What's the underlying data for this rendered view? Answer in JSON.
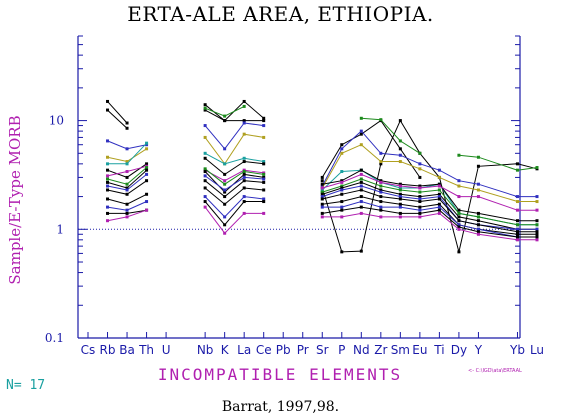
{
  "title": "ERTA-ALE AREA, ETHIOPIA.",
  "credit": "Barrat, 1997,98.",
  "n_label": "N= 17",
  "footnote": "<- C:\\IGD\\ata\\ERTAAL",
  "colors": {
    "axis": "#1a1aa8",
    "label": "#b020b0",
    "nlabel": "#1aa0a0"
  },
  "chart_data": {
    "type": "line",
    "title": "ERTA-ALE AREA, ETHIOPIA.",
    "xlabel": "INCOMPATIBLE ELEMENTS",
    "ylabel": "Sample/E-Type MORB",
    "yscale": "log",
    "ylim": [
      0.1,
      60
    ],
    "yticks": [
      {
        "value": 0.1,
        "label": "0.1"
      },
      {
        "value": 1,
        "label": "1"
      },
      {
        "value": 10,
        "label": "10"
      }
    ],
    "reference_line": 1,
    "grid": false,
    "categories": [
      "Cs",
      "Rb",
      "Ba",
      "Th",
      "U",
      "Nb",
      "K",
      "La",
      "Ce",
      "Pb",
      "Pr",
      "Sr",
      "P",
      "Nd",
      "Zr",
      "Sm",
      "Eu",
      "Ti",
      "Dy",
      "Y",
      "Yb",
      "Lu"
    ],
    "x_index": [
      0,
      1,
      2,
      3,
      4,
      6,
      7,
      8,
      9,
      10,
      11,
      12,
      13,
      14,
      15,
      16,
      17,
      18,
      19,
      20,
      22,
      23
    ],
    "series": [
      {
        "color": "#000000",
        "values": [
          null,
          15,
          9.5,
          null,
          null,
          14,
          10,
          15,
          10.5,
          null,
          null,
          3,
          6,
          7.5,
          10,
          5.5,
          3,
          null,
          null,
          null,
          null,
          null
        ]
      },
      {
        "color": "#000000",
        "values": [
          null,
          12.5,
          8.5,
          null,
          null,
          12.5,
          10,
          10,
          10,
          null,
          null,
          2.8,
          null,
          null,
          null,
          null,
          null,
          null,
          null,
          null,
          null,
          null
        ]
      },
      {
        "color": "#000000",
        "values": [
          null,
          null,
          null,
          null,
          null,
          null,
          null,
          null,
          null,
          null,
          null,
          2.4,
          0.62,
          0.63,
          4,
          10,
          5,
          3,
          0.62,
          3.8,
          4,
          3.6
        ]
      },
      {
        "color": "#1d8a1d",
        "values": [
          null,
          null,
          null,
          null,
          null,
          13,
          11,
          13.5,
          null,
          null,
          null,
          2.2,
          null,
          10.5,
          10.2,
          6.5,
          5,
          null,
          4.8,
          4.6,
          3.5,
          3.7
        ]
      },
      {
        "color": "#3030c0",
        "values": [
          null,
          6.5,
          5.5,
          6,
          null,
          9,
          5.5,
          9.5,
          9,
          null,
          null,
          2.5,
          5.5,
          8,
          5,
          4.8,
          4,
          3.5,
          2.8,
          2.6,
          2,
          2
        ]
      },
      {
        "color": "#b0a020",
        "values": [
          null,
          4.6,
          4.2,
          5.5,
          null,
          7,
          4,
          7.5,
          7,
          null,
          null,
          2.4,
          5,
          6,
          4.2,
          4.2,
          3.6,
          3,
          2.5,
          2.3,
          1.8,
          1.8
        ]
      },
      {
        "color": "#1aa0a0",
        "values": [
          null,
          4,
          4,
          6.2,
          null,
          5,
          4,
          4.5,
          4.2,
          null,
          null,
          2.3,
          3.4,
          3.5,
          2.7,
          2.4,
          2.4,
          2.6,
          1.4,
          1.3,
          1.1,
          1.1
        ]
      },
      {
        "color": "#000000",
        "values": [
          null,
          3.5,
          3,
          4,
          null,
          4.5,
          3.2,
          4.2,
          4,
          null,
          null,
          2.6,
          2.8,
          3.5,
          2.8,
          2.6,
          2.5,
          2.6,
          1.5,
          1.4,
          1.2,
          1.2
        ]
      },
      {
        "color": "#b020b0",
        "values": [
          null,
          3.1,
          3.4,
          3.8,
          null,
          3.5,
          2.8,
          3.5,
          3.3,
          null,
          null,
          2.4,
          2.7,
          3.2,
          2.7,
          2.5,
          2.4,
          2.5,
          2,
          2,
          1.5,
          1.5
        ]
      },
      {
        "color": "#1d8a1d",
        "values": [
          null,
          2.9,
          2.6,
          3.7,
          null,
          3.6,
          2.6,
          3.4,
          3.2,
          null,
          null,
          2.2,
          2.5,
          2.9,
          2.5,
          2.3,
          2.2,
          2.3,
          1.4,
          1.3,
          1.1,
          1.1
        ]
      },
      {
        "color": "#000000",
        "values": [
          null,
          2.7,
          2.4,
          3.5,
          null,
          3.4,
          2.2,
          3.2,
          3,
          null,
          null,
          2.1,
          2.4,
          2.7,
          2.3,
          2.1,
          2,
          2.1,
          1.3,
          1.2,
          1,
          1
        ]
      },
      {
        "color": "#3030c0",
        "values": [
          null,
          2.5,
          2.3,
          3.2,
          null,
          3.1,
          2.3,
          3,
          2.9,
          null,
          null,
          2,
          2.3,
          2.5,
          2.2,
          2,
          1.9,
          2,
          1.2,
          1.1,
          1,
          1
        ]
      },
      {
        "color": "#000000",
        "values": [
          null,
          2.3,
          2.1,
          2.8,
          null,
          2.8,
          2,
          2.8,
          2.7,
          null,
          null,
          1.9,
          2.1,
          2.3,
          2,
          1.9,
          1.8,
          1.9,
          1.2,
          1.1,
          0.95,
          0.95
        ]
      },
      {
        "color": "#000000",
        "values": [
          null,
          1.9,
          1.7,
          2.1,
          null,
          2.4,
          1.7,
          2.4,
          2.3,
          null,
          null,
          1.7,
          1.8,
          2,
          1.8,
          1.7,
          1.6,
          1.7,
          1.1,
          1,
          0.9,
          0.9
        ]
      },
      {
        "color": "#3030c0",
        "values": [
          null,
          1.6,
          1.5,
          1.8,
          null,
          2,
          1.3,
          2,
          1.9,
          null,
          null,
          1.6,
          1.6,
          1.8,
          1.6,
          1.6,
          1.5,
          1.6,
          1.1,
          1,
          0.85,
          0.85
        ]
      },
      {
        "color": "#000000",
        "values": [
          null,
          1.4,
          1.4,
          1.5,
          null,
          1.8,
          1.1,
          1.8,
          1.8,
          null,
          null,
          1.4,
          1.5,
          1.6,
          1.5,
          1.4,
          1.4,
          1.5,
          1.05,
          0.95,
          0.85,
          0.85
        ]
      },
      {
        "color": "#b020b0",
        "values": [
          null,
          1.2,
          1.3,
          1.5,
          null,
          1.6,
          0.92,
          1.4,
          1.4,
          null,
          null,
          1.3,
          1.3,
          1.4,
          1.3,
          1.3,
          1.3,
          1.4,
          1,
          0.9,
          0.8,
          0.8
        ]
      }
    ]
  }
}
